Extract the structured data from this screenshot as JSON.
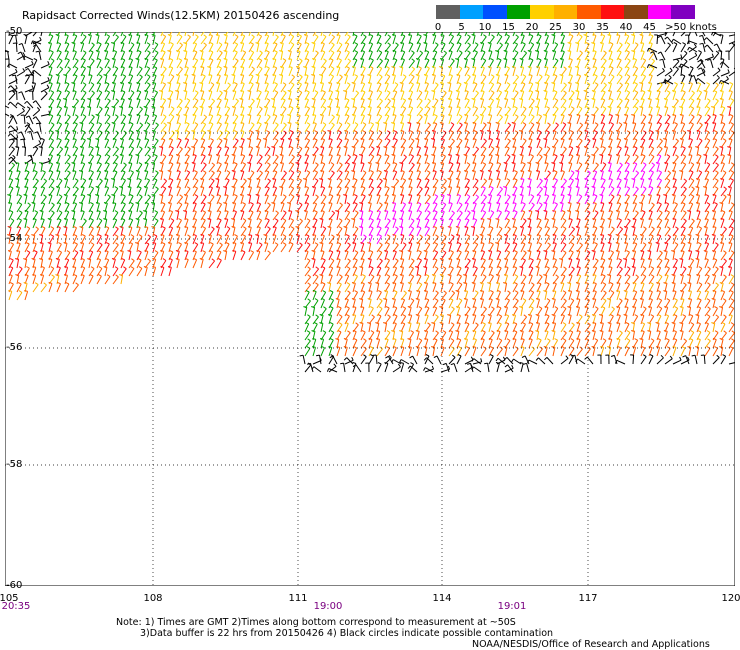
{
  "title": "Rapidsact Corrected Winds(12.5KM) 20150426 ascending",
  "legend": {
    "labels": [
      "0",
      "5",
      "10",
      "15",
      "20",
      "25",
      "30",
      "35",
      "40",
      "45",
      ">50 knots"
    ],
    "colors": [
      "#606060",
      "#00a0ff",
      "#0050ff",
      "#00a000",
      "#ffd000",
      "#ffb000",
      "#ff5a00",
      "#ff1010",
      "#8b4513",
      "#ff00ff",
      "#8000c0"
    ]
  },
  "axes": {
    "lat_labels": [
      "-50",
      "-54",
      "-56",
      "-58",
      "-60"
    ],
    "lon_labels": [
      "105",
      "108",
      "111",
      "114",
      "117",
      "120"
    ],
    "time_labels": [
      "20:35",
      "19:00",
      "19:01"
    ]
  },
  "notes": {
    "line1": "Note: 1) Times are GMT 2)Times along bottom correspond to measurement at ~50S",
    "line2": "3)Data buffer is 22 hrs from 20150426 4) Black circles indicate possible contamination",
    "credit": "NOAA/NESDIS/Office of Research and Applications"
  }
}
